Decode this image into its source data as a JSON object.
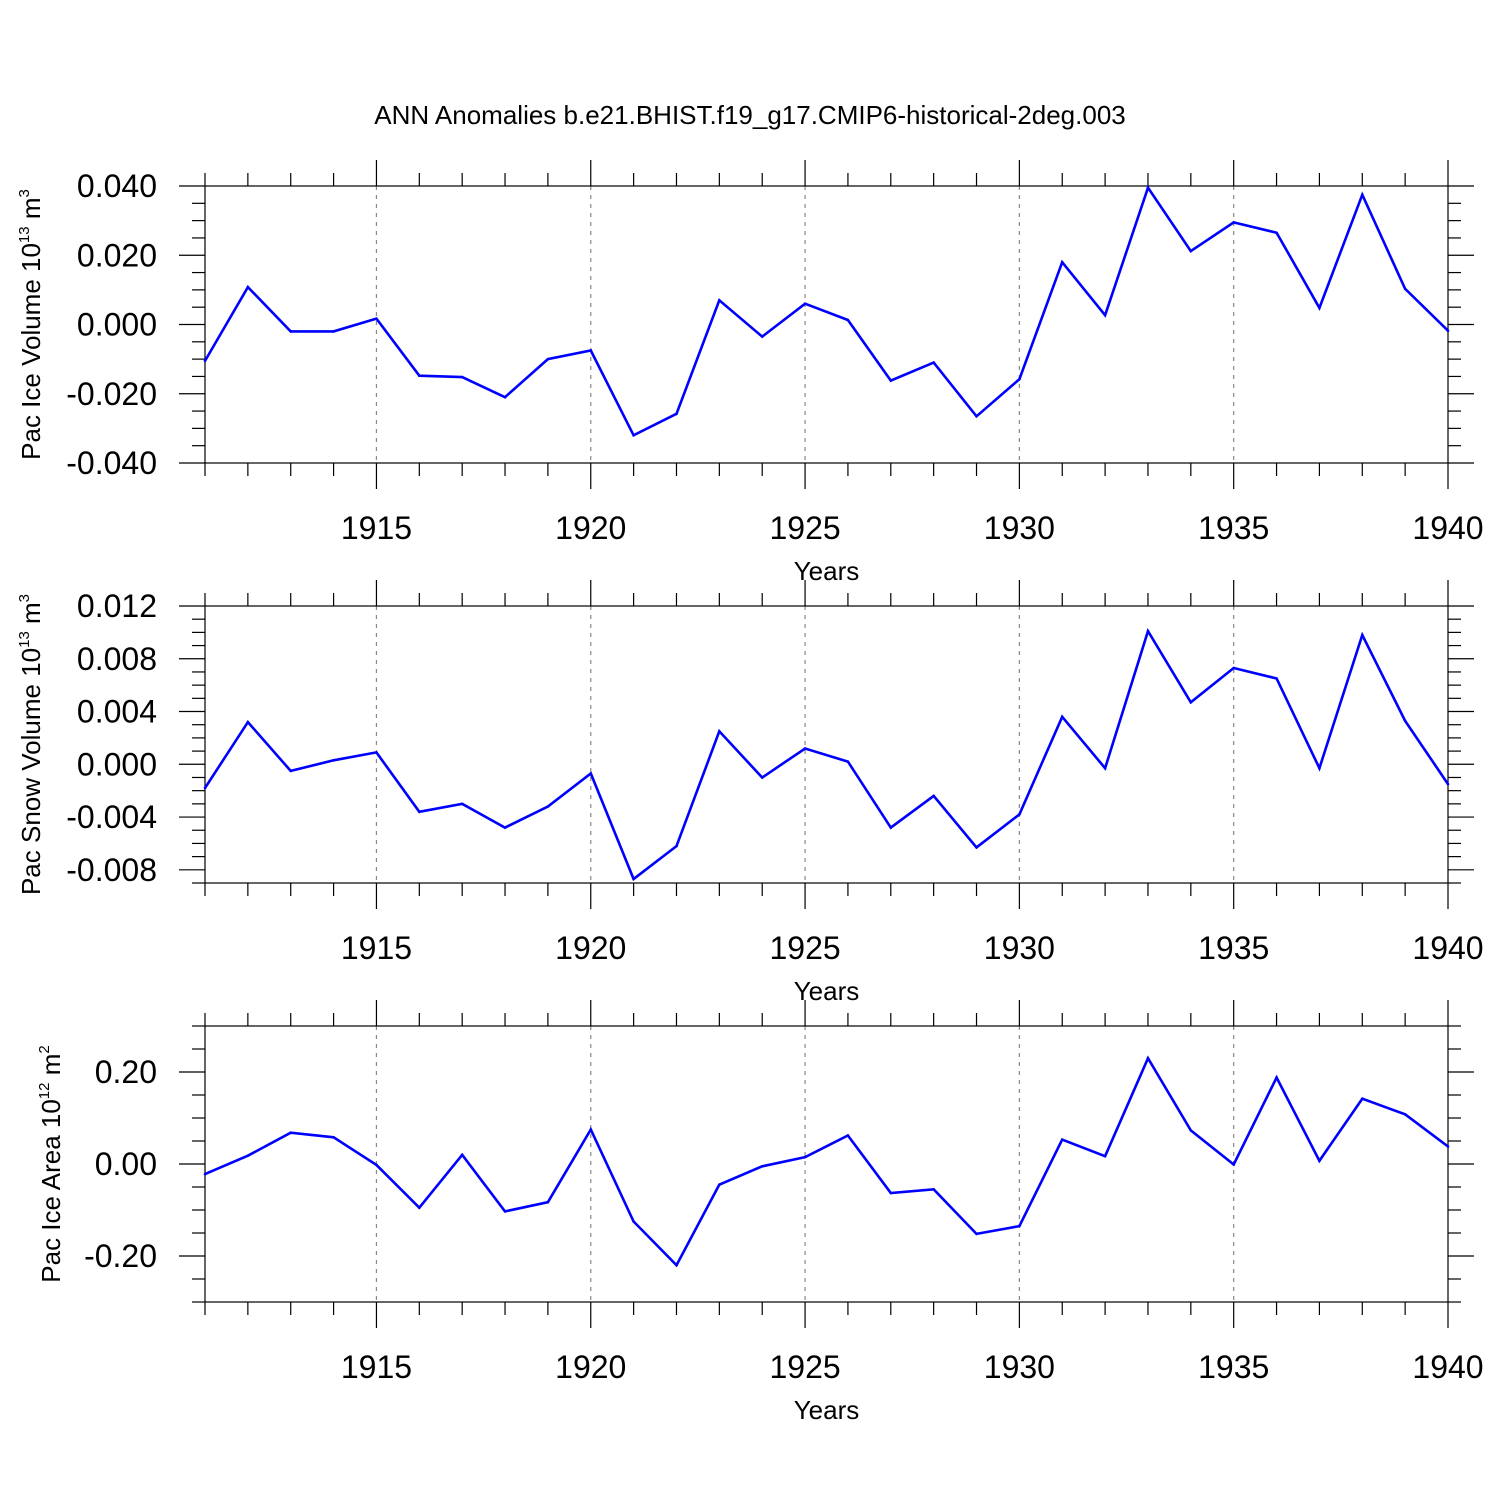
{
  "title": "ANN Anomalies b.e21.BHIST.f19_g17.CMIP6-historical-2deg.003",
  "chart_data": [
    {
      "type": "line",
      "xlabel": "Years",
      "ylabel": {
        "main": "Pac Ice Volume 10",
        "exp": "13",
        "unit": " m",
        "unit_exp": "3"
      },
      "xlim": [
        1911,
        1940
      ],
      "ylim": [
        -0.04,
        0.04
      ],
      "x_ticks": [
        1915,
        1920,
        1925,
        1930,
        1935,
        1940
      ],
      "x_tick_labels": [
        "1915",
        "1920",
        "1925",
        "1930",
        "1935",
        "1940"
      ],
      "y_ticks": [
        -0.04,
        -0.02,
        0.0,
        0.02,
        0.04
      ],
      "y_tick_labels": [
        "-0.040",
        "-0.020",
        "0.000",
        "0.020",
        "0.040"
      ],
      "y_minor_step": 0.005,
      "line_color": "#0000ff",
      "grid": "dashed vertical at major x ticks",
      "x": [
        1911,
        1912,
        1913,
        1914,
        1915,
        1916,
        1917,
        1918,
        1919,
        1920,
        1921,
        1922,
        1923,
        1924,
        1925,
        1926,
        1927,
        1928,
        1929,
        1930,
        1931,
        1932,
        1933,
        1934,
        1935,
        1936,
        1937,
        1938,
        1939,
        1940
      ],
      "values": [
        -0.0105,
        0.0108,
        -0.002,
        -0.002,
        0.0017,
        -0.0148,
        -0.0152,
        -0.021,
        -0.01,
        -0.0075,
        -0.032,
        -0.0258,
        0.007,
        -0.0035,
        0.006,
        0.0013,
        -0.0162,
        -0.011,
        -0.0265,
        -0.0158,
        0.018,
        0.0027,
        0.0395,
        0.0212,
        0.0295,
        0.0265,
        0.0048,
        0.0375,
        0.0103,
        -0.0018
      ]
    },
    {
      "type": "line",
      "xlabel": "Years",
      "ylabel": {
        "main": "Pac Snow Volume 10",
        "exp": "13",
        "unit": " m",
        "unit_exp": "3"
      },
      "xlim": [
        1911,
        1940
      ],
      "ylim": [
        -0.009,
        0.012
      ],
      "x_ticks": [
        1915,
        1920,
        1925,
        1930,
        1935,
        1940
      ],
      "x_tick_labels": [
        "1915",
        "1920",
        "1925",
        "1930",
        "1935",
        "1940"
      ],
      "y_ticks": [
        -0.008,
        -0.004,
        0.0,
        0.004,
        0.008,
        0.012
      ],
      "y_tick_labels": [
        "-0.008",
        "-0.004",
        "0.000",
        "0.004",
        "0.008",
        "0.012"
      ],
      "y_minor_step": 0.001,
      "line_color": "#0000ff",
      "grid": "dashed vertical at major x ticks",
      "x": [
        1911,
        1912,
        1913,
        1914,
        1915,
        1916,
        1917,
        1918,
        1919,
        1920,
        1921,
        1922,
        1923,
        1924,
        1925,
        1926,
        1927,
        1928,
        1929,
        1930,
        1931,
        1932,
        1933,
        1934,
        1935,
        1936,
        1937,
        1938,
        1939,
        1940
      ],
      "values": [
        -0.0018,
        0.0032,
        -0.0005,
        0.0003,
        0.0009,
        -0.0036,
        -0.003,
        -0.0048,
        -0.0032,
        -0.0007,
        -0.0087,
        -0.0062,
        0.0025,
        -0.001,
        0.0012,
        0.0002,
        -0.0048,
        -0.0024,
        -0.0063,
        -0.0038,
        0.0036,
        -0.0003,
        0.0101,
        0.0047,
        0.0073,
        0.0065,
        -0.0003,
        0.0098,
        0.0033,
        -0.0015
      ]
    },
    {
      "type": "line",
      "xlabel": "Years",
      "ylabel": {
        "main": "Pac Ice Area 10",
        "exp": "12",
        "unit": " m",
        "unit_exp": "2"
      },
      "xlim": [
        1911,
        1940
      ],
      "ylim": [
        -0.3,
        0.3
      ],
      "x_ticks": [
        1915,
        1920,
        1925,
        1930,
        1935,
        1940
      ],
      "x_tick_labels": [
        "1915",
        "1920",
        "1925",
        "1930",
        "1935",
        "1940"
      ],
      "y_ticks": [
        -0.2,
        0.0,
        0.2
      ],
      "y_tick_labels": [
        "-0.20",
        "0.00",
        "0.20"
      ],
      "y_minor_step": 0.05,
      "line_color": "#0000ff",
      "grid": "dashed vertical at major x ticks",
      "x": [
        1911,
        1912,
        1913,
        1914,
        1915,
        1916,
        1917,
        1918,
        1919,
        1920,
        1921,
        1922,
        1923,
        1924,
        1925,
        1926,
        1927,
        1928,
        1929,
        1930,
        1931,
        1932,
        1933,
        1934,
        1935,
        1936,
        1937,
        1938,
        1939,
        1940
      ],
      "values": [
        -0.022,
        0.018,
        0.068,
        0.058,
        -0.002,
        -0.095,
        0.02,
        -0.103,
        -0.083,
        0.075,
        -0.125,
        -0.22,
        -0.045,
        -0.005,
        0.015,
        0.062,
        -0.063,
        -0.055,
        -0.152,
        -0.135,
        0.053,
        0.017,
        0.23,
        0.073,
        -0.001,
        0.188,
        0.007,
        0.142,
        0.108,
        0.038
      ]
    }
  ]
}
